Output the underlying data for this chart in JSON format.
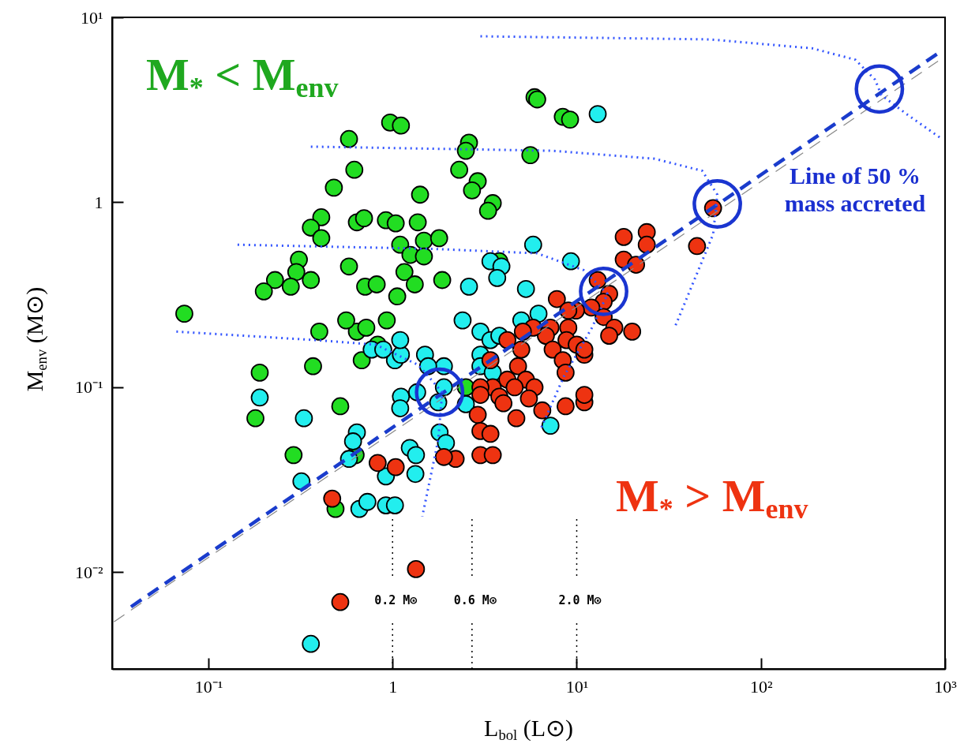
{
  "chart_data": {
    "type": "scatter",
    "xlabel": "L$_{bol}$ (L⊙)",
    "ylabel": "M$_{env}$ (M⊙)",
    "xlim": [
      0.03,
      1000
    ],
    "ylim": [
      0.003,
      10
    ],
    "log": "xy",
    "xticks": [
      {
        "value": 0.1,
        "label": "10⁻¹"
      },
      1,
      {
        "value": 10,
        "label": "10¹"
      },
      {
        "value": 100,
        "label": "10²"
      },
      {
        "value": 1000,
        "label": "10³"
      }
    ],
    "yticks": [
      {
        "value": 0.01,
        "label": "10⁻²"
      },
      {
        "value": 0.1,
        "label": "10⁻¹"
      },
      1,
      {
        "value": 10,
        "label": "10¹"
      }
    ],
    "annotations": [
      "M$_{*}$ < M$_{env}$",
      "M$_{*}$ > M$_{env}$",
      "Line of 50 % mass accreted"
    ],
    "ref_lines": [
      {
        "axis": "x",
        "value": 1.0,
        "label": "0.2 M⊙",
        "line_style": "dotted",
        "color": "#000000"
      },
      {
        "axis": "x",
        "value": 2.7,
        "label": "0.6 M⊙",
        "line_style": "dotted",
        "color": "#000000"
      },
      {
        "axis": "x",
        "value": 10,
        "label": "2.0 M⊙",
        "line_style": "dotted",
        "color": "#000000"
      }
    ],
    "series": [
      {
        "type": "scatter",
        "marker": "circle",
        "color": "#22dd22",
        "x": [
          0.074,
          0.19,
          0.18,
          0.37,
          0.52,
          0.29,
          0.49,
          0.63,
          0.68,
          0.83,
          0.4,
          0.64,
          0.58,
          0.62,
          0.48,
          0.97,
          1.11,
          1.41,
          0.41,
          0.36,
          0.41,
          0.64,
          0.7,
          0.92,
          1.04,
          1.37,
          1.1,
          1.25,
          1.48,
          0.31,
          0.3,
          0.23,
          0.2,
          0.28,
          0.36,
          0.58,
          0.71,
          0.82,
          1.16,
          1.32,
          1.06,
          0.56,
          0.72,
          0.93,
          5.9,
          6.1,
          8.4,
          9.2,
          2.6,
          2.5,
          5.6,
          2.3,
          2.9,
          2.7,
          3.5,
          3.3,
          1.79,
          1.48,
          1.86,
          3.8,
          2.5
        ],
        "values": [
          0.25,
          0.12,
          0.068,
          0.13,
          0.079,
          0.043,
          0.022,
          0.043,
          0.14,
          0.17,
          0.2,
          0.2,
          2.2,
          1.5,
          1.2,
          2.7,
          2.6,
          1.1,
          0.83,
          0.73,
          0.64,
          0.78,
          0.82,
          0.8,
          0.77,
          0.78,
          0.59,
          0.52,
          0.62,
          0.49,
          0.42,
          0.38,
          0.33,
          0.35,
          0.38,
          0.45,
          0.35,
          0.36,
          0.42,
          0.36,
          0.31,
          0.23,
          0.21,
          0.23,
          3.7,
          3.6,
          2.9,
          2.8,
          2.1,
          1.9,
          1.8,
          1.5,
          1.3,
          1.16,
          0.99,
          0.9,
          0.64,
          0.51,
          0.38,
          0.48,
          0.1
        ]
      },
      {
        "type": "scatter",
        "marker": "circle",
        "color": "#22eeee",
        "x": [
          0.19,
          0.33,
          0.32,
          0.64,
          0.61,
          0.58,
          0.92,
          1.24,
          1.34,
          1.33,
          0.66,
          0.73,
          0.92,
          1.03,
          0.36,
          1.03,
          1.11,
          1.1,
          0.77,
          0.89,
          1.11,
          1.1,
          1.36,
          13,
          5.8,
          3.4,
          3.9,
          3.7,
          2.6,
          5.3,
          9.3,
          2.4,
          3.0,
          3.4,
          6.2,
          5.0,
          3.8,
          3.0,
          3.0,
          3.5,
          1.9,
          1.5,
          1.56,
          1.9,
          1.77,
          1.8,
          1.95,
          7.2,
          2.5
        ],
        "values": [
          0.088,
          0.068,
          0.031,
          0.057,
          0.051,
          0.041,
          0.033,
          0.047,
          0.043,
          0.034,
          0.022,
          0.024,
          0.023,
          0.023,
          0.0041,
          0.14,
          0.15,
          0.18,
          0.16,
          0.16,
          0.089,
          0.077,
          0.094,
          3.0,
          0.59,
          0.48,
          0.45,
          0.39,
          0.35,
          0.34,
          0.48,
          0.23,
          0.2,
          0.18,
          0.25,
          0.23,
          0.19,
          0.15,
          0.13,
          0.12,
          0.13,
          0.15,
          0.13,
          0.1,
          0.083,
          0.057,
          0.05,
          0.062,
          0.081
        ]
      },
      {
        "type": "scatter",
        "marker": "circle",
        "color": "#ee3311",
        "x": [
          0.83,
          1.04,
          1.34,
          0.52,
          0.47,
          55,
          45,
          18,
          24,
          24,
          18,
          21,
          13,
          15,
          14,
          12,
          9.9,
          14,
          16,
          15,
          20,
          7.8,
          9.0,
          7.2,
          9.0,
          6.8,
          7.4,
          8.8,
          10,
          11,
          11,
          8.4,
          8.7,
          4.2,
          5.0,
          5.8,
          4.8,
          5.3,
          5.9,
          4.2,
          4.6,
          3.5,
          3.0,
          3.0,
          3.8,
          4.0,
          5.5,
          6.5,
          8.7,
          11,
          11,
          4.7,
          2.9,
          3.0,
          3.4,
          3.0,
          3.5,
          2.2,
          1.9,
          3.4,
          5.1
        ],
        "values": [
          0.039,
          0.037,
          0.0104,
          0.0069,
          0.025,
          0.93,
          0.58,
          0.65,
          0.69,
          0.59,
          0.49,
          0.46,
          0.38,
          0.32,
          0.29,
          0.27,
          0.26,
          0.24,
          0.21,
          0.19,
          0.2,
          0.3,
          0.26,
          0.21,
          0.21,
          0.19,
          0.16,
          0.18,
          0.17,
          0.15,
          0.16,
          0.14,
          0.12,
          0.18,
          0.16,
          0.21,
          0.13,
          0.11,
          0.1,
          0.11,
          0.1,
          0.1,
          0.1,
          0.091,
          0.089,
          0.082,
          0.087,
          0.075,
          0.079,
          0.083,
          0.091,
          0.068,
          0.071,
          0.058,
          0.056,
          0.043,
          0.043,
          0.041,
          0.042,
          0.14,
          0.2
        ]
      },
      {
        "type": "line",
        "color": "#1a3ccc",
        "line_style": "dashed",
        "x": [
          0.038,
          960
        ],
        "values": [
          0.0065,
          6.6
        ]
      },
      {
        "type": "line",
        "color": "#888888",
        "line_style": "dashed",
        "x": [
          0.0307,
          916
        ],
        "values": [
          0.0054,
          5.8
        ]
      },
      {
        "type": "line",
        "color": "#3355ff",
        "line_style": "dotted",
        "x": [
          3.0,
          53,
          190,
          326,
          417,
          451,
          618,
          962
        ],
        "values": [
          7.9,
          7.6,
          6.8,
          5.9,
          4.6,
          3.8,
          3.0,
          2.2
        ]
      },
      {
        "type": "line",
        "color": "#3355ff",
        "line_style": "dotted",
        "x": [
          0.36,
          7.4,
          26.5,
          48,
          58,
          55,
          43,
          34
        ],
        "values": [
          2.0,
          1.9,
          1.72,
          1.48,
          1.1,
          0.67,
          0.37,
          0.21
        ]
      },
      {
        "type": "line",
        "color": "#3355ff",
        "line_style": "dotted",
        "x": [
          0.144,
          1.68,
          6.1,
          10.9,
          14.7,
          12.1,
          8.5,
          6.4
        ],
        "values": [
          0.59,
          0.56,
          0.53,
          0.43,
          0.32,
          0.21,
          0.114,
          0.06
        ]
      },
      {
        "type": "line",
        "color": "#3355ff",
        "line_style": "dotted",
        "x": [
          0.067,
          0.38,
          0.81,
          1.38,
          1.86,
          1.77,
          1.45
        ],
        "values": [
          0.2,
          0.18,
          0.17,
          0.132,
          0.094,
          0.052,
          0.02
        ]
      },
      {
        "type": "scatter",
        "marker": "circle",
        "color": "#1a35d0",
        "x": [
          440,
          58,
          14,
          1.8
        ],
        "values": [
          4.1,
          0.98,
          0.33,
          0.094
        ]
      }
    ]
  }
}
